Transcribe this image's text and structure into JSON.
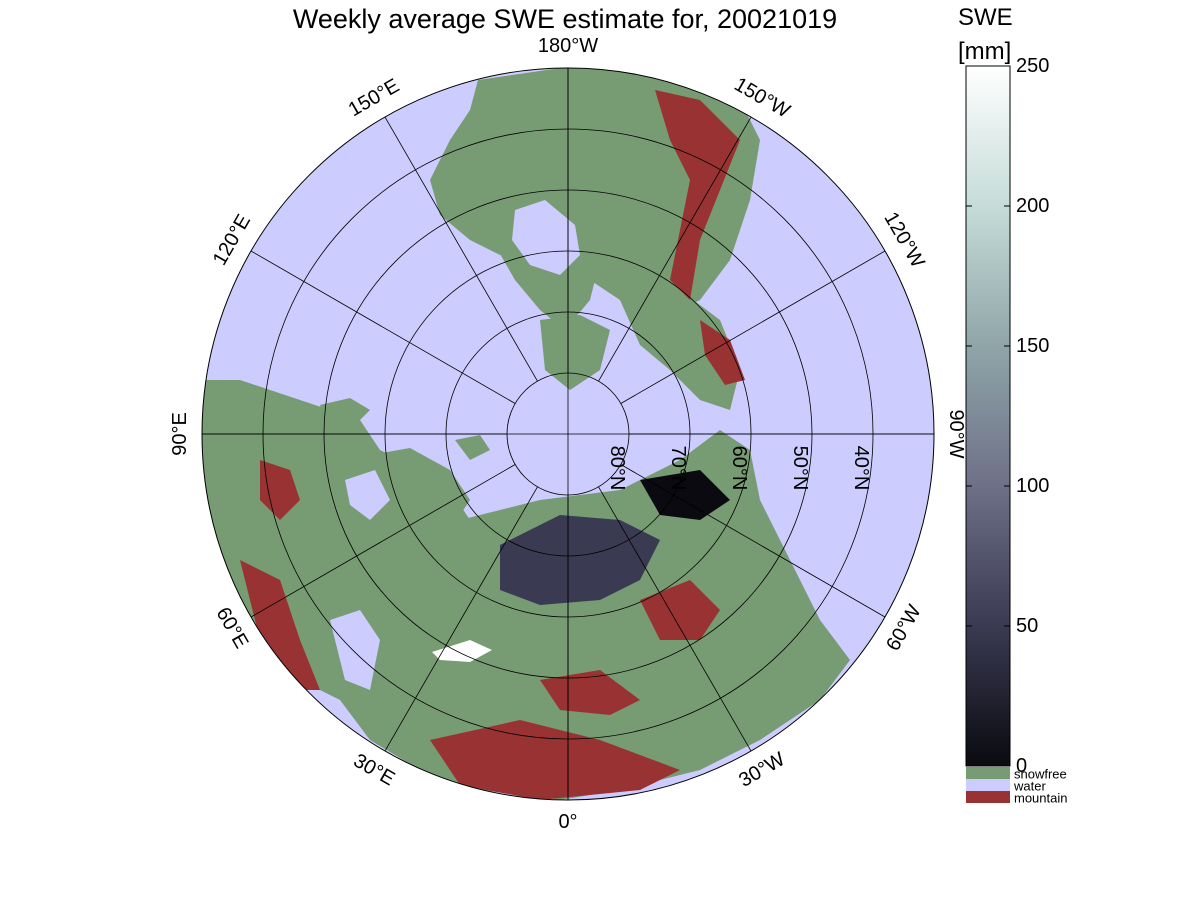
{
  "title": "Weekly average SWE estimate for, 20021019",
  "colorbar": {
    "title": "SWE",
    "unit": "[mm]",
    "min": 0,
    "max": 250,
    "ticks": [
      "0",
      "50",
      "100",
      "150",
      "200",
      "250"
    ],
    "gradient_colors": [
      "#0a0a10",
      "#3a3a52",
      "#6e7088",
      "#8fa5a8",
      "#c5dcd8",
      "#ffffff"
    ],
    "categories": [
      {
        "label": "snowfree",
        "color": "#779b72"
      },
      {
        "label": "water",
        "color": "#ccccff"
      },
      {
        "label": "mountain",
        "color": "#993333"
      }
    ]
  },
  "map": {
    "projection": "north polar stereographic",
    "ocean_color": "#ccccff",
    "land_color": "#779b72",
    "mountain_color": "#993333",
    "longitude_labels": [
      {
        "text": "90°W",
        "lon": -90
      },
      {
        "text": "120°W",
        "lon": -120
      },
      {
        "text": "150°W",
        "lon": -150
      },
      {
        "text": "180°W",
        "lon": 180
      },
      {
        "text": "150°E",
        "lon": 150
      },
      {
        "text": "120°E",
        "lon": 120
      },
      {
        "text": "90°E",
        "lon": 90
      },
      {
        "text": "60°E",
        "lon": 60
      },
      {
        "text": "30°E",
        "lon": 30
      },
      {
        "text": "0°",
        "lon": 0
      },
      {
        "text": "30°W",
        "lon": -30
      },
      {
        "text": "60°W",
        "lon": -60
      }
    ],
    "latitude_labels": [
      {
        "text": "80°N",
        "lat": 80
      },
      {
        "text": "70°N",
        "lat": 70
      },
      {
        "text": "60°N",
        "lat": 60
      },
      {
        "text": "50°N",
        "lat": 50
      },
      {
        "text": "40°N",
        "lat": 40
      }
    ]
  }
}
